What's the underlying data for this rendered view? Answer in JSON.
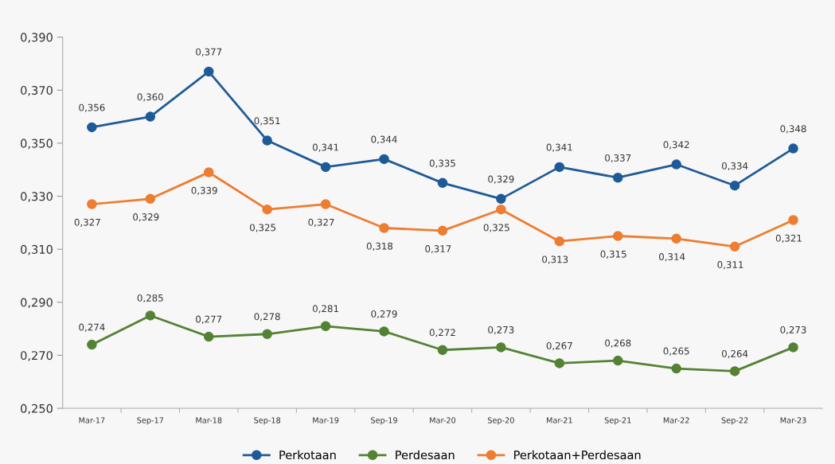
{
  "chart_data": {
    "type": "line",
    "categories": [
      "Mar-17",
      "Sep-17",
      "Mar-18",
      "Sep-18",
      "Mar-19",
      "Sep-19",
      "Mar-20",
      "Sep-20",
      "Mar-21",
      "Sep-21",
      "Mar-22",
      "Sep-22",
      "Mar-23"
    ],
    "series": [
      {
        "name": "Perkotaan",
        "color": "#1f5a98",
        "values": [
          0.356,
          0.36,
          0.377,
          0.351,
          0.341,
          0.344,
          0.335,
          0.329,
          0.341,
          0.337,
          0.342,
          0.334,
          0.348
        ],
        "value_labels": [
          "0,356",
          "0,360",
          "0,377",
          "0,351",
          "0,341",
          "0,344",
          "0,335",
          "0,329",
          "0,341",
          "0,337",
          "0,342",
          "0,334",
          "0,348"
        ]
      },
      {
        "name": "Perdesaan",
        "color": "#548235",
        "values": [
          0.274,
          0.285,
          0.277,
          0.278,
          0.281,
          0.279,
          0.272,
          0.273,
          0.267,
          0.268,
          0.265,
          0.264,
          0.273
        ],
        "value_labels": [
          "0,274",
          "0,285",
          "0,277",
          "0,278",
          "0,281",
          "0,279",
          "0,272",
          "0,273",
          "0,267",
          "0,268",
          "0,265",
          "0,264",
          "0,273"
        ]
      },
      {
        "name": "Perkotaan+Perdesaan",
        "color": "#ed7d31",
        "values": [
          0.327,
          0.329,
          0.339,
          0.325,
          0.327,
          0.318,
          0.317,
          0.325,
          0.313,
          0.315,
          0.314,
          0.311,
          0.321
        ],
        "value_labels": [
          "0,327",
          "0,329",
          "0,339",
          "0,325",
          "0,327",
          "0,318",
          "0,317",
          "0,325",
          "0,313",
          "0,315",
          "0,314",
          "0,311",
          "0,321"
        ]
      }
    ],
    "ylim": [
      0.25,
      0.39
    ],
    "yticks": [
      {
        "value": 0.25,
        "label": "0,250"
      },
      {
        "value": 0.27,
        "label": "0,270"
      },
      {
        "value": 0.29,
        "label": "0,290"
      },
      {
        "value": 0.31,
        "label": "0,310"
      },
      {
        "value": 0.33,
        "label": "0,330"
      },
      {
        "value": 0.35,
        "label": "0,350"
      },
      {
        "value": 0.37,
        "label": "0,370"
      },
      {
        "value": 0.39,
        "label": "0,390"
      }
    ],
    "grid": false,
    "legend": "bottom",
    "marker": "circle",
    "line_style": "solid"
  }
}
